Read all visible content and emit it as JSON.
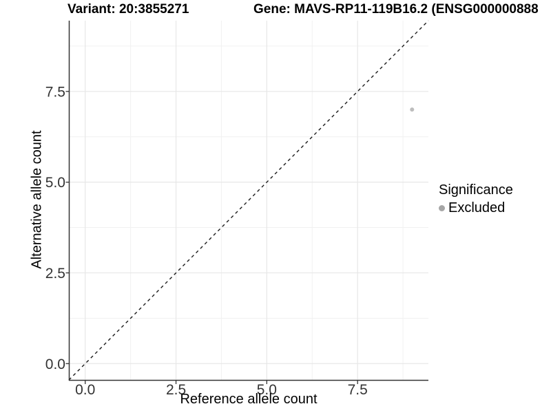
{
  "titles": {
    "variant": "Variant: 20:3855271",
    "gene": "Gene: MAVS-RP11-119B16.2 (ENSG000000888"
  },
  "chart_data": {
    "type": "scatter",
    "title": "Variant: 20:3855271 | Gene: MAVS-RP11-119B16.2 (ENSG000000888",
    "xlabel": "Reference allele count",
    "ylabel": "Alternative allele count",
    "xlim": [
      -0.45,
      9.45
    ],
    "ylim": [
      -0.45,
      9.45
    ],
    "x_tick_values": [
      0,
      2.5,
      5,
      7.5
    ],
    "x_tick_labels": [
      "0.0",
      "2.5",
      "5.0",
      "7.5"
    ],
    "y_tick_values": [
      0,
      2.5,
      5,
      7.5
    ],
    "y_tick_labels": [
      "0.0",
      "2.5",
      "5.0",
      "7.5"
    ],
    "minor_x": [
      1.25,
      3.75,
      6.25,
      8.75
    ],
    "minor_y": [
      1.25,
      3.75,
      6.25,
      8.75
    ],
    "grid": "major and minor gridlines, no panel border, left and bottom axis lines only",
    "series": [
      {
        "name": "Excluded",
        "marker": "circle",
        "color": "#bdbdbd",
        "points": [
          {
            "x": 9,
            "y": 7
          }
        ]
      }
    ],
    "reference_line": {
      "kind": "identity y = x",
      "style": "dashed",
      "color": "#1a1a1a"
    },
    "legend": {
      "title": "Significance",
      "position": "right",
      "items": [
        {
          "label": "Excluded",
          "color": "#a6a6a6"
        }
      ]
    }
  },
  "style": {
    "background": "#ffffff",
    "grid_major_color": "#e7e7e7",
    "grid_minor_color": "#f1f1f1",
    "axis_line_color": "#333333",
    "tick_color": "#333333",
    "tick_label_color": "#333333",
    "point_color": "#bdbdbd",
    "legend_key_color": "#a6a6a6",
    "dashed_line_color": "#1a1a1a"
  }
}
